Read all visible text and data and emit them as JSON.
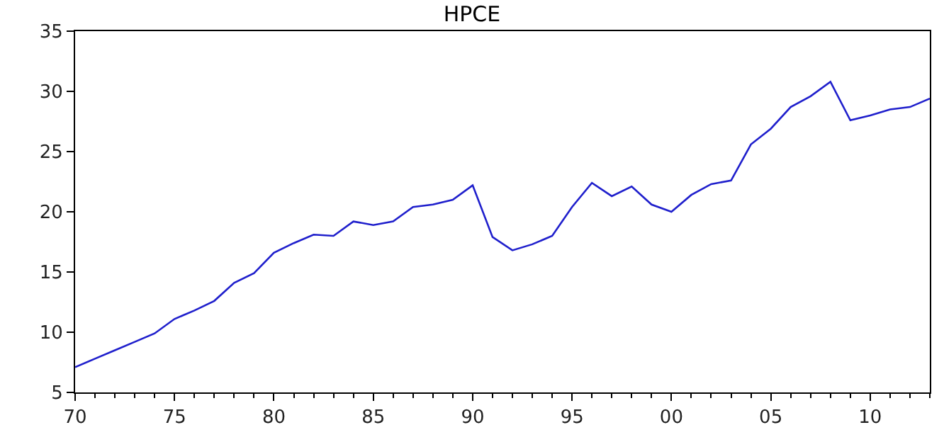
{
  "chart_data": {
    "type": "line",
    "title": "HPCE",
    "x": [
      1970,
      1971,
      1972,
      1973,
      1974,
      1975,
      1976,
      1977,
      1978,
      1979,
      1980,
      1981,
      1982,
      1983,
      1984,
      1985,
      1986,
      1987,
      1988,
      1989,
      1990,
      1991,
      1992,
      1993,
      1994,
      1995,
      1996,
      1997,
      1998,
      1999,
      2000,
      2001,
      2002,
      2003,
      2004,
      2005,
      2006,
      2007,
      2008,
      2009,
      2010,
      2011,
      2012,
      2013
    ],
    "series": [
      {
        "color": "#1f1fcc",
        "values": [
          7.1,
          7.8,
          8.5,
          9.2,
          9.9,
          11.1,
          11.8,
          12.6,
          14.1,
          14.9,
          16.6,
          17.4,
          18.1,
          18.0,
          19.2,
          18.9,
          19.2,
          20.4,
          20.6,
          21.0,
          22.2,
          17.9,
          16.8,
          17.3,
          18.0,
          20.4,
          22.4,
          21.3,
          22.1,
          20.6,
          20.0,
          21.4,
          22.3,
          22.6,
          25.6,
          26.9,
          28.7,
          29.6,
          30.8,
          27.6,
          28.0,
          28.5,
          28.7,
          29.4
        ]
      }
    ],
    "xlim": [
      1970,
      2013
    ],
    "xticks": [
      {
        "value": 1970,
        "label": "70"
      },
      {
        "value": 1975,
        "label": "75"
      },
      {
        "value": 1980,
        "label": "80"
      },
      {
        "value": 1985,
        "label": "85"
      },
      {
        "value": 1990,
        "label": "90"
      },
      {
        "value": 1995,
        "label": "95"
      },
      {
        "value": 2000,
        "label": "00"
      },
      {
        "value": 2005,
        "label": "05"
      },
      {
        "value": 2010,
        "label": "10"
      }
    ],
    "ylim": [
      5,
      35
    ],
    "yticks": [
      5,
      10,
      15,
      20,
      25,
      30,
      35
    ],
    "marker": "none",
    "line_style": "solid"
  }
}
